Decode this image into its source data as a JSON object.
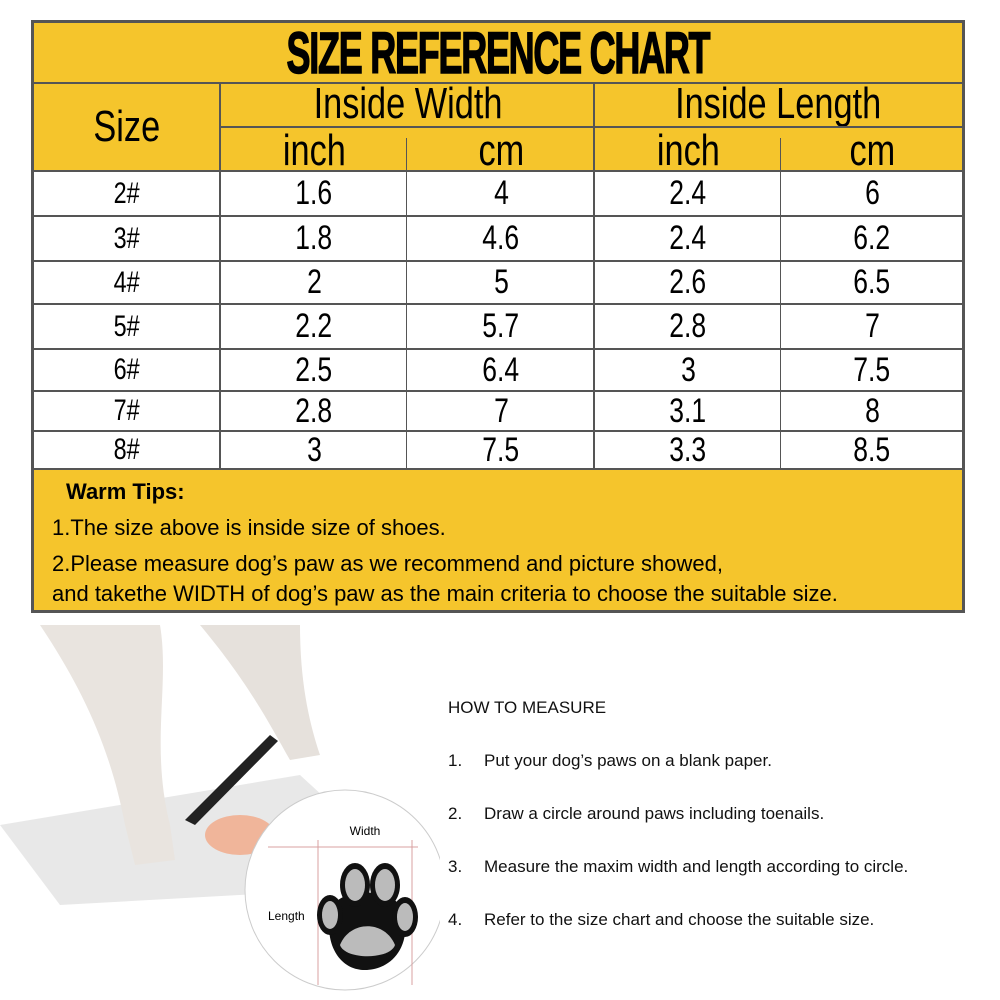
{
  "chart": {
    "title": "SIZE REFERENCE CHART",
    "headers": {
      "size": "Size",
      "width": "Inside Width",
      "length": "Inside Length",
      "inch": "inch",
      "cm": "cm"
    },
    "rows": [
      {
        "size": "2#",
        "w_inch": "1.6",
        "w_cm": "4",
        "l_inch": "2.4",
        "l_cm": "6"
      },
      {
        "size": "3#",
        "w_inch": "1.8",
        "w_cm": "4.6",
        "l_inch": "2.4",
        "l_cm": "6.2"
      },
      {
        "size": "4#",
        "w_inch": "2",
        "w_cm": "5",
        "l_inch": "2.6",
        "l_cm": "6.5"
      },
      {
        "size": "5#",
        "w_inch": "2.2",
        "w_cm": "5.7",
        "l_inch": "2.8",
        "l_cm": "7"
      },
      {
        "size": "6#",
        "w_inch": "2.5",
        "w_cm": "6.4",
        "l_inch": "3",
        "l_cm": "7.5"
      },
      {
        "size": "7#",
        "w_inch": "2.8",
        "w_cm": "7",
        "l_inch": "3.1",
        "l_cm": "8"
      },
      {
        "size": "8#",
        "w_inch": "3",
        "w_cm": "7.5",
        "l_inch": "3.3",
        "l_cm": "8.5"
      }
    ],
    "tips": {
      "heading": "Warm Tips:",
      "line1": "1.The size above is inside size of shoes.",
      "line2": "2.Please measure dog’s paw as we recommend and picture showed,",
      "line3": "and takethe WIDTH of dog’s paw as the main criteria to choose the suitable size."
    },
    "colors": {
      "header_bg": "#f5c52c",
      "border": "#555555"
    }
  },
  "illustration": {
    "width_label": "Width",
    "length_label": "Length"
  },
  "how_to": {
    "heading": "HOW TO MEASURE",
    "steps": [
      {
        "n": "1.",
        "text": "Put your dog’s paws on a blank paper."
      },
      {
        "n": "2.",
        "text": "Draw a circle around paws including toenails."
      },
      {
        "n": "3.",
        "text": "Measure the maxim width and length according to circle."
      },
      {
        "n": "4.",
        "text": "Refer to the size chart and choose the suitable size."
      }
    ]
  }
}
